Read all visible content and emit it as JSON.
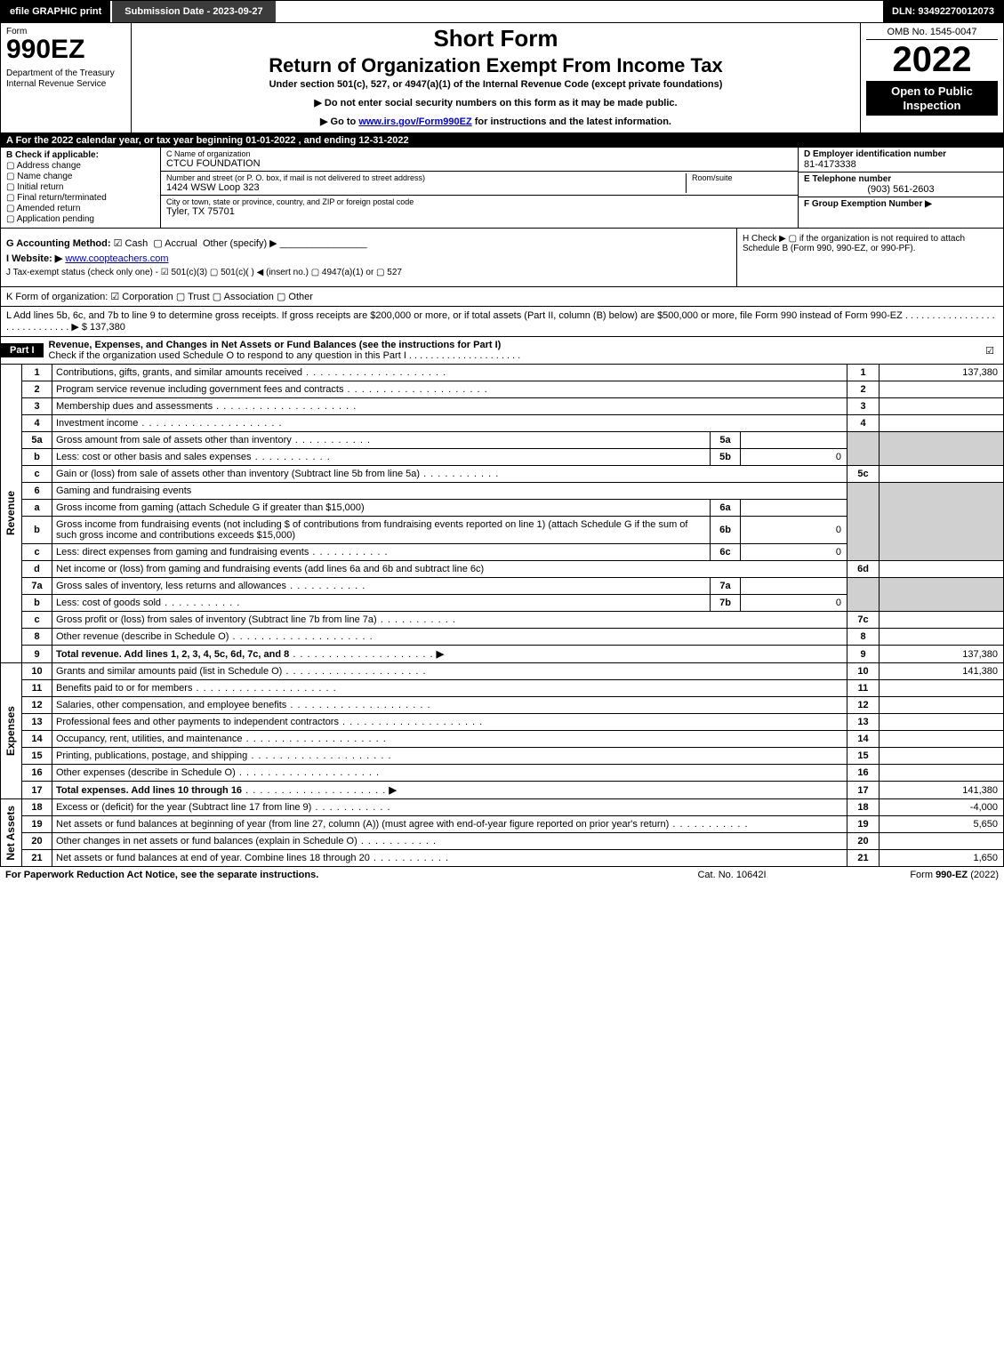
{
  "topbar": {
    "efile": "efile GRAPHIC print",
    "submission": "Submission Date - 2023-09-27",
    "dln": "DLN: 93492270012073"
  },
  "header": {
    "form_label": "Form",
    "form_number": "990EZ",
    "dept": "Department of the Treasury\nInternal Revenue Service",
    "short_form": "Short Form",
    "main_title": "Return of Organization Exempt From Income Tax",
    "subtitle": "Under section 501(c), 527, or 4947(a)(1) of the Internal Revenue Code (except private foundations)",
    "instr1": "▶ Do not enter social security numbers on this form as it may be made public.",
    "instr2_pre": "▶ Go to ",
    "instr2_link": "www.irs.gov/Form990EZ",
    "instr2_post": " for instructions and the latest information.",
    "omb": "OMB No. 1545-0047",
    "year": "2022",
    "open": "Open to Public Inspection"
  },
  "A": "A  For the 2022 calendar year, or tax year beginning 01-01-2022 , and ending 12-31-2022",
  "B": {
    "head": "B  Check if applicable:",
    "addr_change": "Address change",
    "name_change": "Name change",
    "initial": "Initial return",
    "final": "Final return/terminated",
    "amended": "Amended return",
    "pending": "Application pending"
  },
  "C": {
    "name_label": "C Name of organization",
    "name": "CTCU FOUNDATION",
    "street_label": "Number and street (or P. O. box, if mail is not delivered to street address)",
    "street": "1424 WSW Loop 323",
    "room_label": "Room/suite",
    "city_label": "City or town, state or province, country, and ZIP or foreign postal code",
    "city": "Tyler, TX  75701"
  },
  "D": {
    "label": "D Employer identification number",
    "val": "81-4173338"
  },
  "E": {
    "label": "E Telephone number",
    "val": "(903) 561-2603"
  },
  "F": {
    "label": "F Group Exemption Number  ▶"
  },
  "G": {
    "label": "G Accounting Method:",
    "cash": "Cash",
    "accrual": "Accrual",
    "other": "Other (specify) ▶"
  },
  "H": "H   Check ▶  ▢  if the organization is not required to attach Schedule B (Form 990, 990-EZ, or 990-PF).",
  "I": {
    "label": "I Website: ▶",
    "val": "www.coopteachers.com"
  },
  "J": "J Tax-exempt status (check only one) - ☑ 501(c)(3)  ▢ 501(c)(  ) ◀ (insert no.)  ▢ 4947(a)(1) or  ▢ 527",
  "K": "K Form of organization:   ☑ Corporation   ▢ Trust   ▢ Association   ▢ Other",
  "L": {
    "text": "L Add lines 5b, 6c, and 7b to line 9 to determine gross receipts. If gross receipts are $200,000 or more, or if total assets (Part II, column (B) below) are $500,000 or more, file Form 990 instead of Form 990-EZ . . . . . . . . . . . . . . . . . . . . . . . . . . . . . ▶ $",
    "val": "137,380"
  },
  "part1": {
    "bar": "Part I",
    "head": "Revenue, Expenses, and Changes in Net Assets or Fund Balances (see the instructions for Part I)",
    "sub": "Check if the organization used Schedule O to respond to any question in this Part I . . . . . . . . . . . . . . . . . . . . ."
  },
  "rev": {
    "side": "Revenue",
    "l1": {
      "n": "1",
      "t": "Contributions, gifts, grants, and similar amounts received",
      "a": "137,380"
    },
    "l2": {
      "n": "2",
      "t": "Program service revenue including government fees and contracts"
    },
    "l3": {
      "n": "3",
      "t": "Membership dues and assessments"
    },
    "l4": {
      "n": "4",
      "t": "Investment income"
    },
    "l5a": {
      "n": "5a",
      "t": "Gross amount from sale of assets other than inventory"
    },
    "l5b": {
      "n": "b",
      "t": "Less: cost or other basis and sales expenses",
      "s": "5b",
      "a": "0"
    },
    "l5c": {
      "n": "c",
      "t": "Gain or (loss) from sale of assets other than inventory (Subtract line 5b from line 5a)",
      "r": "5c"
    },
    "l6": {
      "n": "6",
      "t": "Gaming and fundraising events"
    },
    "l6a": {
      "n": "a",
      "t": "Gross income from gaming (attach Schedule G if greater than $15,000)",
      "s": "6a"
    },
    "l6b": {
      "n": "b",
      "t": "Gross income from fundraising events (not including $                       of contributions from fundraising events reported on line 1) (attach Schedule G if the sum of such gross income and contributions exceeds $15,000)",
      "s": "6b",
      "a": "0"
    },
    "l6c": {
      "n": "c",
      "t": "Less: direct expenses from gaming and fundraising events",
      "s": "6c",
      "a": "0"
    },
    "l6d": {
      "n": "d",
      "t": "Net income or (loss) from gaming and fundraising events (add lines 6a and 6b and subtract line 6c)",
      "r": "6d"
    },
    "l7a": {
      "n": "7a",
      "t": "Gross sales of inventory, less returns and allowances",
      "s": "7a"
    },
    "l7b": {
      "n": "b",
      "t": "Less: cost of goods sold",
      "s": "7b",
      "a": "0"
    },
    "l7c": {
      "n": "c",
      "t": "Gross profit or (loss) from sales of inventory (Subtract line 7b from line 7a)",
      "r": "7c"
    },
    "l8": {
      "n": "8",
      "t": "Other revenue (describe in Schedule O)"
    },
    "l9": {
      "n": "9",
      "t": "Total revenue. Add lines 1, 2, 3, 4, 5c, 6d, 7c, and 8",
      "a": "137,380"
    }
  },
  "exp": {
    "side": "Expenses",
    "l10": {
      "n": "10",
      "t": "Grants and similar amounts paid (list in Schedule O)",
      "a": "141,380"
    },
    "l11": {
      "n": "11",
      "t": "Benefits paid to or for members"
    },
    "l12": {
      "n": "12",
      "t": "Salaries, other compensation, and employee benefits"
    },
    "l13": {
      "n": "13",
      "t": "Professional fees and other payments to independent contractors"
    },
    "l14": {
      "n": "14",
      "t": "Occupancy, rent, utilities, and maintenance"
    },
    "l15": {
      "n": "15",
      "t": "Printing, publications, postage, and shipping"
    },
    "l16": {
      "n": "16",
      "t": "Other expenses (describe in Schedule O)"
    },
    "l17": {
      "n": "17",
      "t": "Total expenses. Add lines 10 through 16",
      "a": "141,380"
    }
  },
  "net": {
    "side": "Net Assets",
    "l18": {
      "n": "18",
      "t": "Excess or (deficit) for the year (Subtract line 17 from line 9)",
      "a": "-4,000"
    },
    "l19": {
      "n": "19",
      "t": "Net assets or fund balances at beginning of year (from line 27, column (A)) (must agree with end-of-year figure reported on prior year's return)",
      "a": "5,650"
    },
    "l20": {
      "n": "20",
      "t": "Other changes in net assets or fund balances (explain in Schedule O)"
    },
    "l21": {
      "n": "21",
      "t": "Net assets or fund balances at end of year. Combine lines 18 through 20",
      "a": "1,650"
    }
  },
  "footer": {
    "left": "For Paperwork Reduction Act Notice, see the separate instructions.",
    "mid": "Cat. No. 10642I",
    "right_pre": "Form ",
    "right_bold": "990-EZ",
    "right_post": " (2022)"
  },
  "colors": {
    "black": "#000000",
    "darkgrey": "#3c3c3c",
    "cellgrey": "#d0d0d0",
    "link": "#0000cc"
  }
}
